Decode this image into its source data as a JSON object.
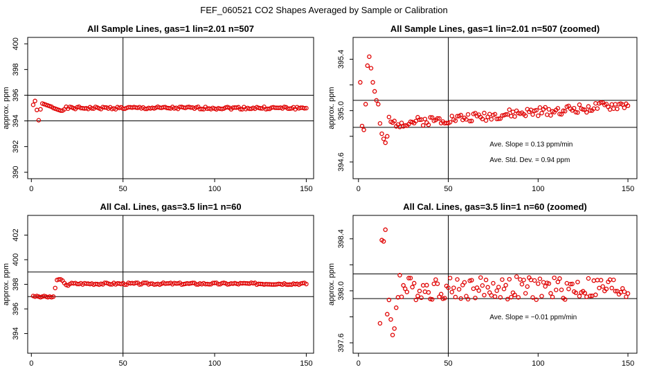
{
  "figure_title": "FEF_060521  CO2 Shapes Averaged by Sample or Calibration",
  "colors": {
    "points": "#e00000",
    "axes": "#000000"
  },
  "chart_data": [
    {
      "type": "scatter",
      "title": "All Sample Lines, gas=1 lin=2.01 n=507",
      "xlabel": "",
      "ylabel": "approx. ppm",
      "xlim": [
        -2,
        154
      ],
      "ylim": [
        389.5,
        400.5
      ],
      "xticks": [
        0,
        50,
        100,
        150
      ],
      "yticks": [
        390,
        392,
        394,
        396,
        398,
        400
      ],
      "hlines": [
        394,
        396
      ],
      "vlines": [
        50
      ],
      "annotations": [],
      "series": [
        {
          "name": "sample",
          "gen": {
            "n": 150,
            "base": 395.0,
            "amp": 0.1,
            "seed": 1,
            "early": [
              395.25,
              395.55,
              394.85,
              394.05,
              394.9,
              395.35,
              395.3,
              395.25,
              395.2,
              395.15,
              395.1,
              395.0,
              394.95,
              394.9,
              394.85,
              394.8,
              394.8,
              394.9
            ]
          }
        }
      ]
    },
    {
      "type": "scatter",
      "title": "All Sample Lines, gas=1 lin=2.01 n=507 (zoomed)",
      "xlabel": "",
      "ylabel": "approx. ppm",
      "xlim": [
        -3,
        155
      ],
      "ylim": [
        394.47,
        395.57
      ],
      "xticks": [
        0,
        50,
        100,
        150
      ],
      "yticks": [
        394.6,
        394.8,
        395.0,
        395.2,
        395.4
      ],
      "yticklabels": [
        "394.6",
        "",
        "395.0",
        "",
        "395.4"
      ],
      "hlines": [
        394.87,
        395.08
      ],
      "vlines": [
        50
      ],
      "annotations": [
        {
          "text": "Ave. Slope =  0.13  ppm/min",
          "x": 73,
          "y": 394.72
        },
        {
          "text": "Ave. Std. Dev. =  0.94  ppm",
          "x": 73,
          "y": 394.6
        }
      ],
      "series": [
        {
          "name": "sample-zoomed",
          "gen": {
            "n": 150,
            "base": 394.88,
            "slope": 0.0011,
            "amp": 0.035,
            "seed": 2,
            "early": [
              395.22,
              394.88,
              394.85,
              395.05,
              395.35,
              395.42,
              395.33,
              395.22,
              395.15,
              395.08,
              395.05,
              394.9,
              394.82,
              394.78,
              394.75,
              394.8,
              394.95
            ]
          }
        }
      ]
    },
    {
      "type": "scatter",
      "title": "All Cal. Lines, gas=3.5 lin=1 n=60",
      "xlabel": "",
      "ylabel": "approx. ppm",
      "xlim": [
        -2,
        154
      ],
      "ylim": [
        392.4,
        403.6
      ],
      "xticks": [
        0,
        50,
        100,
        150
      ],
      "yticks": [
        394,
        396,
        398,
        400,
        402
      ],
      "hlines": [
        397,
        399
      ],
      "vlines": [
        50
      ],
      "annotations": [],
      "series": [
        {
          "name": "cal",
          "gen": {
            "n": 150,
            "base": 398.05,
            "amp": 0.08,
            "seed": 3,
            "early": [
              397.05,
              397.0,
              397.05,
              397.0,
              396.95,
              397.0,
              397.05,
              397.0,
              396.95,
              397.0,
              396.95,
              397.0,
              397.7,
              398.35,
              398.4,
              398.4,
              398.3,
              398.1,
              397.95,
              397.9
            ]
          }
        }
      ]
    },
    {
      "type": "scatter",
      "title": "All Cal. Lines, gas=3.5 lin=1 n=60 (zoomed)",
      "xlabel": "",
      "ylabel": "approx. ppm",
      "xlim": [
        -3,
        155
      ],
      "ylim": [
        397.52,
        398.58
      ],
      "xticks": [
        0,
        50,
        100,
        150
      ],
      "yticks": [
        397.6,
        397.8,
        398.0,
        398.2,
        398.4
      ],
      "yticklabels": [
        "397.6",
        "",
        "398.0",
        "",
        "398.4"
      ],
      "hlines": [
        397.94,
        398.13
      ],
      "vlines": [
        50
      ],
      "annotations": [
        {
          "text": "Ave. Slope =  −0.01  ppm/min",
          "x": 73,
          "y": 397.78
        }
      ],
      "series": [
        {
          "name": "cal-zoomed",
          "gen": {
            "n": 150,
            "base": 398.02,
            "amp": 0.09,
            "seed": 4,
            "early": [
              397.75,
              398.39,
              398.38,
              398.47,
              397.82,
              397.93,
              397.78,
              397.66,
              397.71,
              397.87,
              397.95,
              398.12
            ],
            "earlyStart": 12
          }
        }
      ]
    }
  ]
}
